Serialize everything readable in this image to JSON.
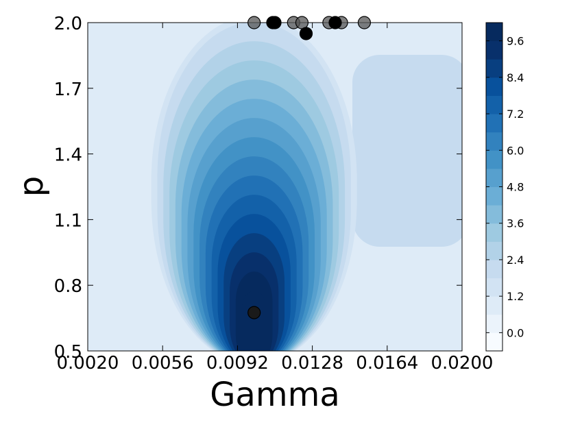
{
  "chart_data": {
    "type": "contour",
    "xlabel": "Gamma",
    "ylabel": "p",
    "xlim": [
      0.002,
      0.02
    ],
    "ylim": [
      0.5,
      2.0
    ],
    "x_ticks": [
      "0.0020",
      "0.0056",
      "0.0092",
      "0.0128",
      "0.0164",
      "0.0200"
    ],
    "x_tick_values": [
      0.002,
      0.0056,
      0.0092,
      0.0128,
      0.0164,
      0.02
    ],
    "y_ticks": [
      "0.5",
      "0.8",
      "1.1",
      "1.4",
      "1.7",
      "2.0"
    ],
    "y_tick_values": [
      0.5,
      0.8,
      1.1,
      1.4,
      1.7,
      2.0
    ],
    "colorbar": {
      "ticks": [
        "0.0",
        "1.2",
        "2.4",
        "3.6",
        "4.8",
        "6.0",
        "7.2",
        "8.4",
        "9.6"
      ],
      "tick_values": [
        0.0,
        1.2,
        2.4,
        3.6,
        4.8,
        6.0,
        7.2,
        8.4,
        9.6
      ],
      "range": [
        -0.6,
        10.2
      ],
      "levels": 18,
      "colors": [
        "#f7fbff",
        "#ebf3fb",
        "#deebf7",
        "#d2e3f3",
        "#c6dbef",
        "#b2d2e8",
        "#9ecae1",
        "#84bcdb",
        "#6baed6",
        "#57a0ce",
        "#4292c6",
        "#3282be",
        "#2171b5",
        "#1361a9",
        "#08519c",
        "#083f80",
        "#08306b",
        "#062a5e"
      ]
    },
    "peak": {
      "x": 0.01,
      "y": 0.65,
      "value": 10.0
    },
    "points": [
      {
        "x": 0.01,
        "y": 0.675,
        "style": "dark"
      },
      {
        "x": 0.0125,
        "y": 1.95,
        "style": "black"
      },
      {
        "x": 0.0109,
        "y": 2.0,
        "style": "black"
      },
      {
        "x": 0.011,
        "y": 2.0,
        "style": "black"
      },
      {
        "x": 0.0139,
        "y": 2.0,
        "style": "black"
      },
      {
        "x": 0.01,
        "y": 2.0,
        "style": "grey"
      },
      {
        "x": 0.0119,
        "y": 2.0,
        "style": "grey"
      },
      {
        "x": 0.0123,
        "y": 2.0,
        "style": "grey"
      },
      {
        "x": 0.0136,
        "y": 2.0,
        "style": "grey"
      },
      {
        "x": 0.0142,
        "y": 2.0,
        "style": "grey"
      },
      {
        "x": 0.0153,
        "y": 2.0,
        "style": "grey"
      }
    ],
    "grid": false
  }
}
